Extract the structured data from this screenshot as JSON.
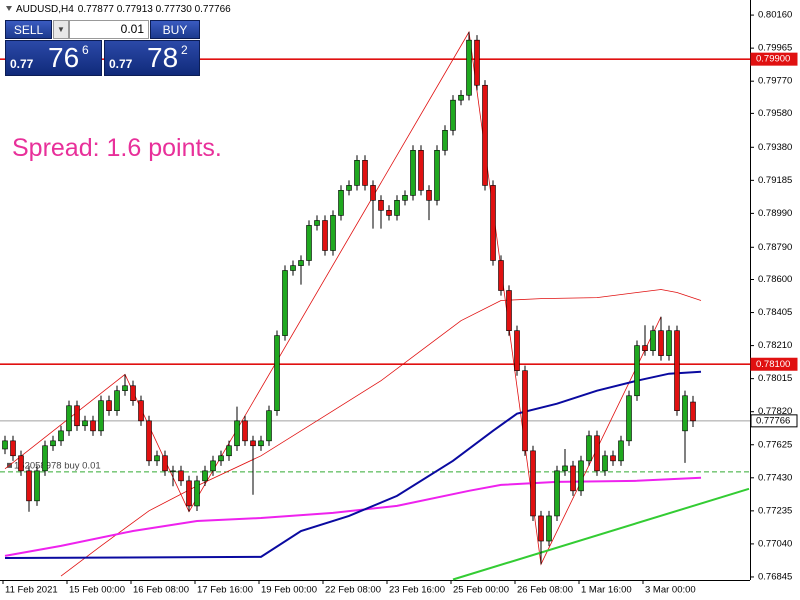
{
  "header": {
    "symbol": "AUDUSD,H4",
    "quote": "0.77877 0.77913 0.77730 0.77766"
  },
  "trade_panel": {
    "sell": "SELL",
    "buy": "BUY",
    "lot": "0.01",
    "sell_price": {
      "big": "0.77",
      "pips": "76",
      "point": "6"
    },
    "buy_price": {
      "big": "0.77",
      "pips": "78",
      "point": "2"
    }
  },
  "spread_text": "Spread: 1.6 points.",
  "chart_data": {
    "type": "candlestick",
    "open": [
      0.776,
      0.77648,
      0.7756,
      0.77471,
      0.77294,
      0.77471,
      0.77619,
      0.77648,
      0.77707,
      0.77855,
      0.77737,
      0.77766,
      0.77707,
      0.77885,
      0.77826,
      0.77944,
      0.77973,
      0.77885,
      0.77766,
      0.7753,
      0.7756,
      0.77471,
      0.77471,
      0.77412,
      0.77264,
      0.77412,
      0.77471,
      0.7753,
      0.7756,
      0.77619,
      0.77766,
      0.77648,
      0.77619,
      0.77648,
      0.77826,
      0.78269,
      0.78653,
      0.78682,
      0.78712,
      0.78919,
      0.78948,
      0.78771,
      0.78978,
      0.79126,
      0.79155,
      0.79303,
      0.79155,
      0.79067,
      0.79008,
      0.78978,
      0.79067,
      0.79096,
      0.79362,
      0.79126,
      0.79067,
      0.79362,
      0.7948,
      0.79658,
      0.79687,
      0.80012,
      0.79746,
      0.79155,
      0.78712,
      0.78535,
      0.78298,
      0.78062,
      0.77589,
      0.77205,
      0.77057,
      0.77205,
      0.77471,
      0.775,
      0.77353,
      0.7753,
      0.77678,
      0.77471,
      0.7756,
      0.7753,
      0.77648,
      0.77914,
      0.7821,
      0.7818,
      0.78298,
      0.78151,
      0.78298,
      0.77707,
      0.77877
    ],
    "high": [
      0.77678,
      0.77678,
      0.7759,
      0.77501,
      0.77501,
      0.77649,
      0.77678,
      0.77737,
      0.77885,
      0.77885,
      0.77796,
      0.77796,
      0.77915,
      0.77915,
      0.77974,
      0.7804,
      0.78003,
      0.77915,
      0.77796,
      0.7759,
      0.7759,
      0.77501,
      0.77501,
      0.77442,
      0.77442,
      0.77501,
      0.7756,
      0.7759,
      0.77649,
      0.7785,
      0.77796,
      0.77678,
      0.77678,
      0.77856,
      0.78299,
      0.78683,
      0.78712,
      0.78742,
      0.78949,
      0.78978,
      0.78978,
      0.79008,
      0.79156,
      0.79185,
      0.79333,
      0.79333,
      0.79185,
      0.79097,
      0.79038,
      0.79097,
      0.79126,
      0.79392,
      0.79392,
      0.79156,
      0.79392,
      0.7951,
      0.79688,
      0.79717,
      0.8006,
      0.80042,
      0.79776,
      0.79185,
      0.78742,
      0.78565,
      0.78328,
      0.78092,
      0.77619,
      0.77235,
      0.77235,
      0.77501,
      0.776,
      0.7753,
      0.7756,
      0.77708,
      0.77708,
      0.7759,
      0.7759,
      0.77678,
      0.77944,
      0.7824,
      0.7833,
      0.78328,
      0.7838,
      0.78328,
      0.78328,
      0.77944,
      0.77913
    ],
    "low": [
      0.7757,
      0.7753,
      0.77441,
      0.7723,
      0.77264,
      0.77441,
      0.77589,
      0.77618,
      0.77677,
      0.77707,
      0.77707,
      0.77677,
      0.77677,
      0.77796,
      0.77796,
      0.77914,
      0.77855,
      0.77736,
      0.775,
      0.775,
      0.77441,
      0.7738,
      0.77382,
      0.7723,
      0.77234,
      0.77382,
      0.77441,
      0.775,
      0.7753,
      0.77589,
      0.77618,
      0.7733,
      0.77589,
      0.77618,
      0.77796,
      0.78239,
      0.78623,
      0.7857,
      0.78682,
      0.78889,
      0.78741,
      0.78741,
      0.78948,
      0.79096,
      0.79125,
      0.79125,
      0.789,
      0.789,
      0.78948,
      0.78948,
      0.79037,
      0.79066,
      0.79096,
      0.7895,
      0.79037,
      0.79332,
      0.7945,
      0.79628,
      0.79657,
      0.79716,
      0.79125,
      0.78682,
      0.78505,
      0.78268,
      0.78032,
      0.77559,
      0.77175,
      0.7692,
      0.77027,
      0.77175,
      0.77441,
      0.77323,
      0.77323,
      0.775,
      0.77441,
      0.77441,
      0.775,
      0.775,
      0.77618,
      0.77884,
      0.7815,
      0.7815,
      0.78121,
      0.78121,
      0.77796,
      0.77518,
      0.7773
    ],
    "close": [
      0.77648,
      0.7756,
      0.77471,
      0.77294,
      0.77471,
      0.77619,
      0.77648,
      0.77707,
      0.77855,
      0.77737,
      0.77766,
      0.77707,
      0.77885,
      0.77826,
      0.77944,
      0.77973,
      0.77885,
      0.77766,
      0.7753,
      0.7756,
      0.77471,
      0.77471,
      0.77412,
      0.77264,
      0.77412,
      0.77471,
      0.7753,
      0.7756,
      0.77619,
      0.77766,
      0.77648,
      0.77619,
      0.77648,
      0.77826,
      0.78269,
      0.78653,
      0.78682,
      0.78712,
      0.78919,
      0.78948,
      0.78771,
      0.78978,
      0.79126,
      0.79155,
      0.79303,
      0.79155,
      0.79067,
      0.79008,
      0.78978,
      0.79067,
      0.79096,
      0.79362,
      0.79126,
      0.79067,
      0.79362,
      0.7948,
      0.79658,
      0.79687,
      0.80012,
      0.79746,
      0.79155,
      0.78712,
      0.78535,
      0.78298,
      0.78062,
      0.77589,
      0.77205,
      0.77057,
      0.77205,
      0.77471,
      0.775,
      0.77353,
      0.7753,
      0.77678,
      0.77471,
      0.7756,
      0.7753,
      0.77648,
      0.77914,
      0.7821,
      0.7818,
      0.78298,
      0.78151,
      0.78298,
      0.77826,
      0.77914,
      0.77766
    ],
    "up_color": "#1fa81f",
    "down_color": "#e01010",
    "xlim": [
      -0.625,
      93.125
    ],
    "xticks": [
      {
        "value": 0,
        "label": "11 Feb 2021"
      },
      {
        "value": 8,
        "label": "15 Feb 00:00"
      },
      {
        "value": 16,
        "label": "16 Feb 08:00"
      },
      {
        "value": 24,
        "label": "17 Feb 16:00"
      },
      {
        "value": 32,
        "label": "19 Feb 00:00"
      },
      {
        "value": 40,
        "label": "22 Feb 08:00"
      },
      {
        "value": 48,
        "label": "23 Feb 16:00"
      },
      {
        "value": 56,
        "label": "25 Feb 00:00"
      },
      {
        "value": 64,
        "label": "26 Feb 08:00"
      },
      {
        "value": 72,
        "label": "1 Mar 16:00"
      },
      {
        "value": 80,
        "label": "3 Mar 00:00"
      }
    ],
    "ylim": [
      0.76827,
      0.80249
    ],
    "yticks": [
      {
        "value": 0.8016,
        "label": "0.80160"
      },
      0.79965,
      {
        "value": 0.7977,
        "label": "0.79770"
      },
      {
        "value": 0.7958,
        "label": "0.79580"
      },
      {
        "value": 0.7938,
        "label": "0.79380"
      },
      0.79185,
      {
        "value": 0.7899,
        "label": "0.78990"
      },
      {
        "value": 0.7879,
        "label": "0.78790"
      },
      {
        "value": 0.786,
        "label": "0.78600"
      },
      0.78405,
      {
        "value": 0.7821,
        "label": "0.78210"
      },
      0.78015,
      {
        "value": 0.7782,
        "label": "0.77820"
      },
      0.77625,
      {
        "value": 0.7743,
        "label": "0.77430"
      },
      0.77235,
      {
        "value": 0.7704,
        "label": "0.77040"
      },
      0.76845
    ],
    "overlays": [
      {
        "color": "#e01010",
        "width": 0.8,
        "x": [
          7,
          12,
          18,
          24,
          32,
          39,
          47,
          52,
          57,
          62,
          67,
          74,
          79,
          82,
          84,
          87
        ],
        "values": [
          0.7685,
          0.77028,
          0.77235,
          0.77382,
          0.7756,
          0.77766,
          0.78003,
          0.7818,
          0.78357,
          0.78476,
          0.78487,
          0.78493,
          0.78523,
          0.78541,
          0.78523,
          0.78476
        ]
      },
      {
        "color": "#e01010",
        "width": 0.8,
        "x": [
          0,
          15,
          23,
          58,
          67,
          82
        ],
        "values": [
          0.77483,
          0.7804,
          0.7723,
          0.8006,
          0.7692,
          0.7838
        ]
      },
      {
        "color": "#ee22ee",
        "width": 2,
        "x": [
          0,
          7,
          16,
          24,
          32,
          41,
          49,
          58,
          62,
          69,
          79,
          87
        ],
        "values": [
          0.76969,
          0.77028,
          0.77116,
          0.77175,
          0.77193,
          0.77223,
          0.77264,
          0.77353,
          0.77388,
          0.77406,
          0.77412,
          0.7743
        ]
      },
      {
        "color": "#0a0aa0",
        "width": 2,
        "x": [
          0,
          32,
          37,
          43,
          49,
          56,
          61,
          64,
          69,
          74,
          79,
          83,
          87
        ],
        "values": [
          0.76957,
          0.76963,
          0.77116,
          0.77205,
          0.77323,
          0.7753,
          0.77707,
          0.77808,
          0.77867,
          0.77944,
          0.78003,
          0.78044,
          0.78056
        ]
      },
      {
        "color": "#33cc33",
        "width": 2,
        "x": [
          56,
          93
        ],
        "values": [
          0.7683,
          0.77365
        ]
      }
    ],
    "levels": [
      {
        "value": 0.799,
        "label": "0.79900",
        "color": "#e01010",
        "text_color": "#ffffff"
      },
      {
        "value": 0.781,
        "label": "0.78100",
        "color": "#e01010",
        "text_color": "#ffffff"
      },
      {
        "value": 0.77766,
        "label": "0.77766",
        "color": "#a0a0a0",
        "text_color": "#000000"
      }
    ],
    "order": {
      "value": 0.77465,
      "label": "152058978 buy 0.01",
      "color": "#33aa33"
    }
  }
}
